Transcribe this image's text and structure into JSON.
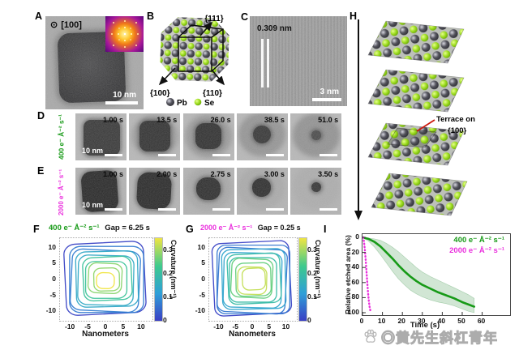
{
  "colors": {
    "green": "#179a17",
    "magenta": "#ea2fdd",
    "se_green": "#9bdc1e",
    "pb_gray": "#45454d",
    "annot_red": "#cc1a0e",
    "band_green": "#2e8b3c",
    "colormap": [
      "#3a3fc4",
      "#2f9fd8",
      "#3ec98e",
      "#f0e542"
    ]
  },
  "panelA": {
    "label": "A",
    "zone_symbol": "⊙",
    "zone_axis": "[100]",
    "scale_bar": "10 nm"
  },
  "panelB": {
    "label": "B",
    "facet_111": "{111}",
    "facet_100": "{100}",
    "facet_110": "{110}",
    "legend_pb": "Pb",
    "legend_se": "Se"
  },
  "panelC": {
    "label": "C",
    "lattice_spacing": "0.309 nm",
    "scale_bar": "3 nm"
  },
  "panelD": {
    "label": "D",
    "dose": "400 e⁻ Å⁻² s⁻¹",
    "scale_bar": "10 nm",
    "times": [
      "1.00 s",
      "13.5 s",
      "26.0 s",
      "38.5 s",
      "51.0 s"
    ]
  },
  "panelE": {
    "label": "E",
    "dose": "2000 e⁻ Å⁻² s⁻¹",
    "scale_bar": "10 nm",
    "times": [
      "1.00 s",
      "2.00 s",
      "2.75 s",
      "3.00 s",
      "3.50 s"
    ]
  },
  "panelF": {
    "label": "F",
    "title_dose": "400 e⁻ Å⁻² s⁻¹",
    "title_gap": "Gap = 6.25 s",
    "xlabel": "Nanometers",
    "colorbar_label": "Curvature (nm⁻¹)"
  },
  "panelG": {
    "label": "G",
    "title_dose": "2000 e⁻ Å⁻² s⁻¹",
    "title_gap": "Gap = 0.25 s",
    "xlabel": "Nanometers",
    "colorbar_label": "Curvature (nm⁻¹)"
  },
  "panelH": {
    "label": "H",
    "annotation_line1": "Terrace on",
    "annotation_line2": "{100}"
  },
  "panelI": {
    "label": "I",
    "xlabel": "Time (s)",
    "ylabel": "Relative etched area (%)",
    "legend": [
      {
        "label": "400 e⁻ Å⁻² s⁻¹",
        "color_key": "green"
      },
      {
        "label": "2000 e⁻ Å⁻² s⁻¹",
        "color_key": "magenta"
      }
    ]
  },
  "watermark": {
    "text": "◎黄先生斜杠青年"
  },
  "chart_data": [
    {
      "panel": "F",
      "type": "contour",
      "title": "400 e⁻ Å⁻² s⁻¹ Gap = 6.25 s",
      "dose_rate_e_per_A2_s": 400,
      "frame_gap_s": 6.25,
      "xlabel": "Nanometers",
      "xlim": [
        -13,
        13
      ],
      "ylim": [
        -13,
        13
      ],
      "x_ticks": [
        -10,
        -5,
        0,
        5,
        10
      ],
      "y_ticks": [
        10,
        5,
        0,
        -5,
        -10
      ],
      "colorbar": {
        "label": "Curvature (nm⁻¹)",
        "lim": [
          0,
          0.35
        ],
        "ticks": [
          0,
          0.1,
          0.2,
          0.3
        ]
      },
      "contours": {
        "half_width_nm": [
          11.2,
          10.4,
          9.6,
          8.7,
          7.8,
          6.8,
          5.8,
          4.7,
          3.6,
          2.5
        ],
        "corner_radius_nm": [
          3.2,
          3.1,
          3.0,
          2.9,
          2.8,
          2.7,
          2.5,
          2.3,
          2.0,
          1.8
        ]
      },
      "note": "Concentric outlines of the shrinking nanocube, color = local curvature (sides low/blue, corners and inner rings high/yellow)"
    },
    {
      "panel": "G",
      "type": "contour",
      "title": "2000 e⁻ Å⁻² s⁻¹ Gap = 0.25 s",
      "dose_rate_e_per_A2_s": 2000,
      "frame_gap_s": 0.25,
      "xlabel": "Nanometers",
      "xlim": [
        -13,
        13
      ],
      "ylim": [
        -13,
        13
      ],
      "x_ticks": [
        -10,
        -5,
        0,
        5,
        10
      ],
      "y_ticks": [
        10,
        5,
        0,
        -5,
        -10
      ],
      "colorbar": {
        "label": "Curvature (nm⁻¹)",
        "lim": [
          0,
          0.35
        ],
        "ticks": [
          0,
          0.1,
          0.2,
          0.3
        ]
      },
      "contours": {
        "half_width_nm": [
          11.4,
          10.8,
          10.1,
          9.4,
          8.6,
          7.8,
          7.0,
          6.1,
          5.2,
          4.3,
          3.4
        ],
        "corner_radius_nm": [
          2.6,
          2.6,
          2.6,
          2.6,
          2.6,
          2.5,
          2.5,
          2.4,
          2.3,
          2.2,
          2.0
        ]
      },
      "note": "Outlines every 0.25 s; shape stays square-ish with sharper corners"
    },
    {
      "panel": "I",
      "type": "line",
      "xlabel": "Time (s)",
      "ylabel": "Relative etched area (%)",
      "xlim": [
        0,
        74
      ],
      "ylim": [
        0,
        100
      ],
      "y_axis_inverted": true,
      "x_ticks": [
        0,
        10,
        20,
        30,
        40,
        50,
        60
      ],
      "y_ticks": [
        0,
        20,
        40,
        60,
        80,
        100
      ],
      "series": [
        {
          "name": "400 e⁻ Å⁻² s⁻¹",
          "color_key": "green",
          "style": "solid_with_band",
          "x": [
            0,
            3,
            6,
            9,
            12,
            15,
            18,
            21,
            24,
            27,
            30,
            34,
            38,
            42,
            46,
            50,
            53,
            56
          ],
          "y": [
            0,
            2,
            6,
            12,
            20,
            28,
            37,
            45,
            52,
            58,
            63,
            68,
            73,
            77,
            81,
            86,
            89,
            92
          ],
          "band_upper": [
            0,
            5,
            13,
            23,
            34,
            45,
            55,
            63,
            70,
            75,
            79,
            83,
            86,
            88,
            91,
            95,
            98,
            100
          ],
          "band_lower": [
            0,
            1,
            2,
            4,
            8,
            13,
            19,
            26,
            33,
            40,
            46,
            52,
            57,
            62,
            67,
            72,
            76,
            81
          ]
        },
        {
          "name": "2000 e⁻ Å⁻² s⁻¹",
          "color_key": "magenta",
          "style": "dotted",
          "x": [
            0.4,
            0.8,
            1.2,
            1.6,
            2.0,
            2.4,
            2.8,
            3.2,
            3.6,
            4.0
          ],
          "y": [
            0,
            7,
            17,
            30,
            45,
            60,
            74,
            85,
            93,
            98
          ]
        }
      ]
    }
  ]
}
